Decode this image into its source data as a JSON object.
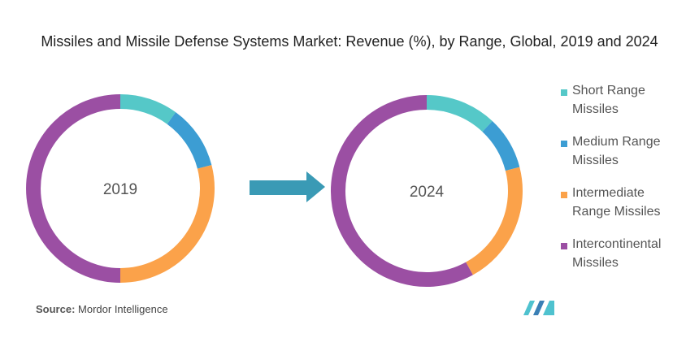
{
  "title": "Missiles and Missile Defense Systems Market: Revenue (%), by Range, Global, 2019 and 2024",
  "source_label": "Source:",
  "source": "Mordor Intelligence",
  "chart_data": [
    {
      "type": "pie",
      "label": "2019",
      "categories": [
        "Short Range Missiles",
        "Medium Range Missiles",
        "Intermediate Range Missiles",
        "Intercontinental Missiles"
      ],
      "colors": [
        "#55c8c8",
        "#3c9dd3",
        "#fba24a",
        "#9b4fa3"
      ],
      "values": [
        10,
        11,
        29,
        50
      ]
    },
    {
      "type": "pie",
      "label": "2024",
      "values": [
        12,
        9,
        21,
        58
      ]
    }
  ]
}
